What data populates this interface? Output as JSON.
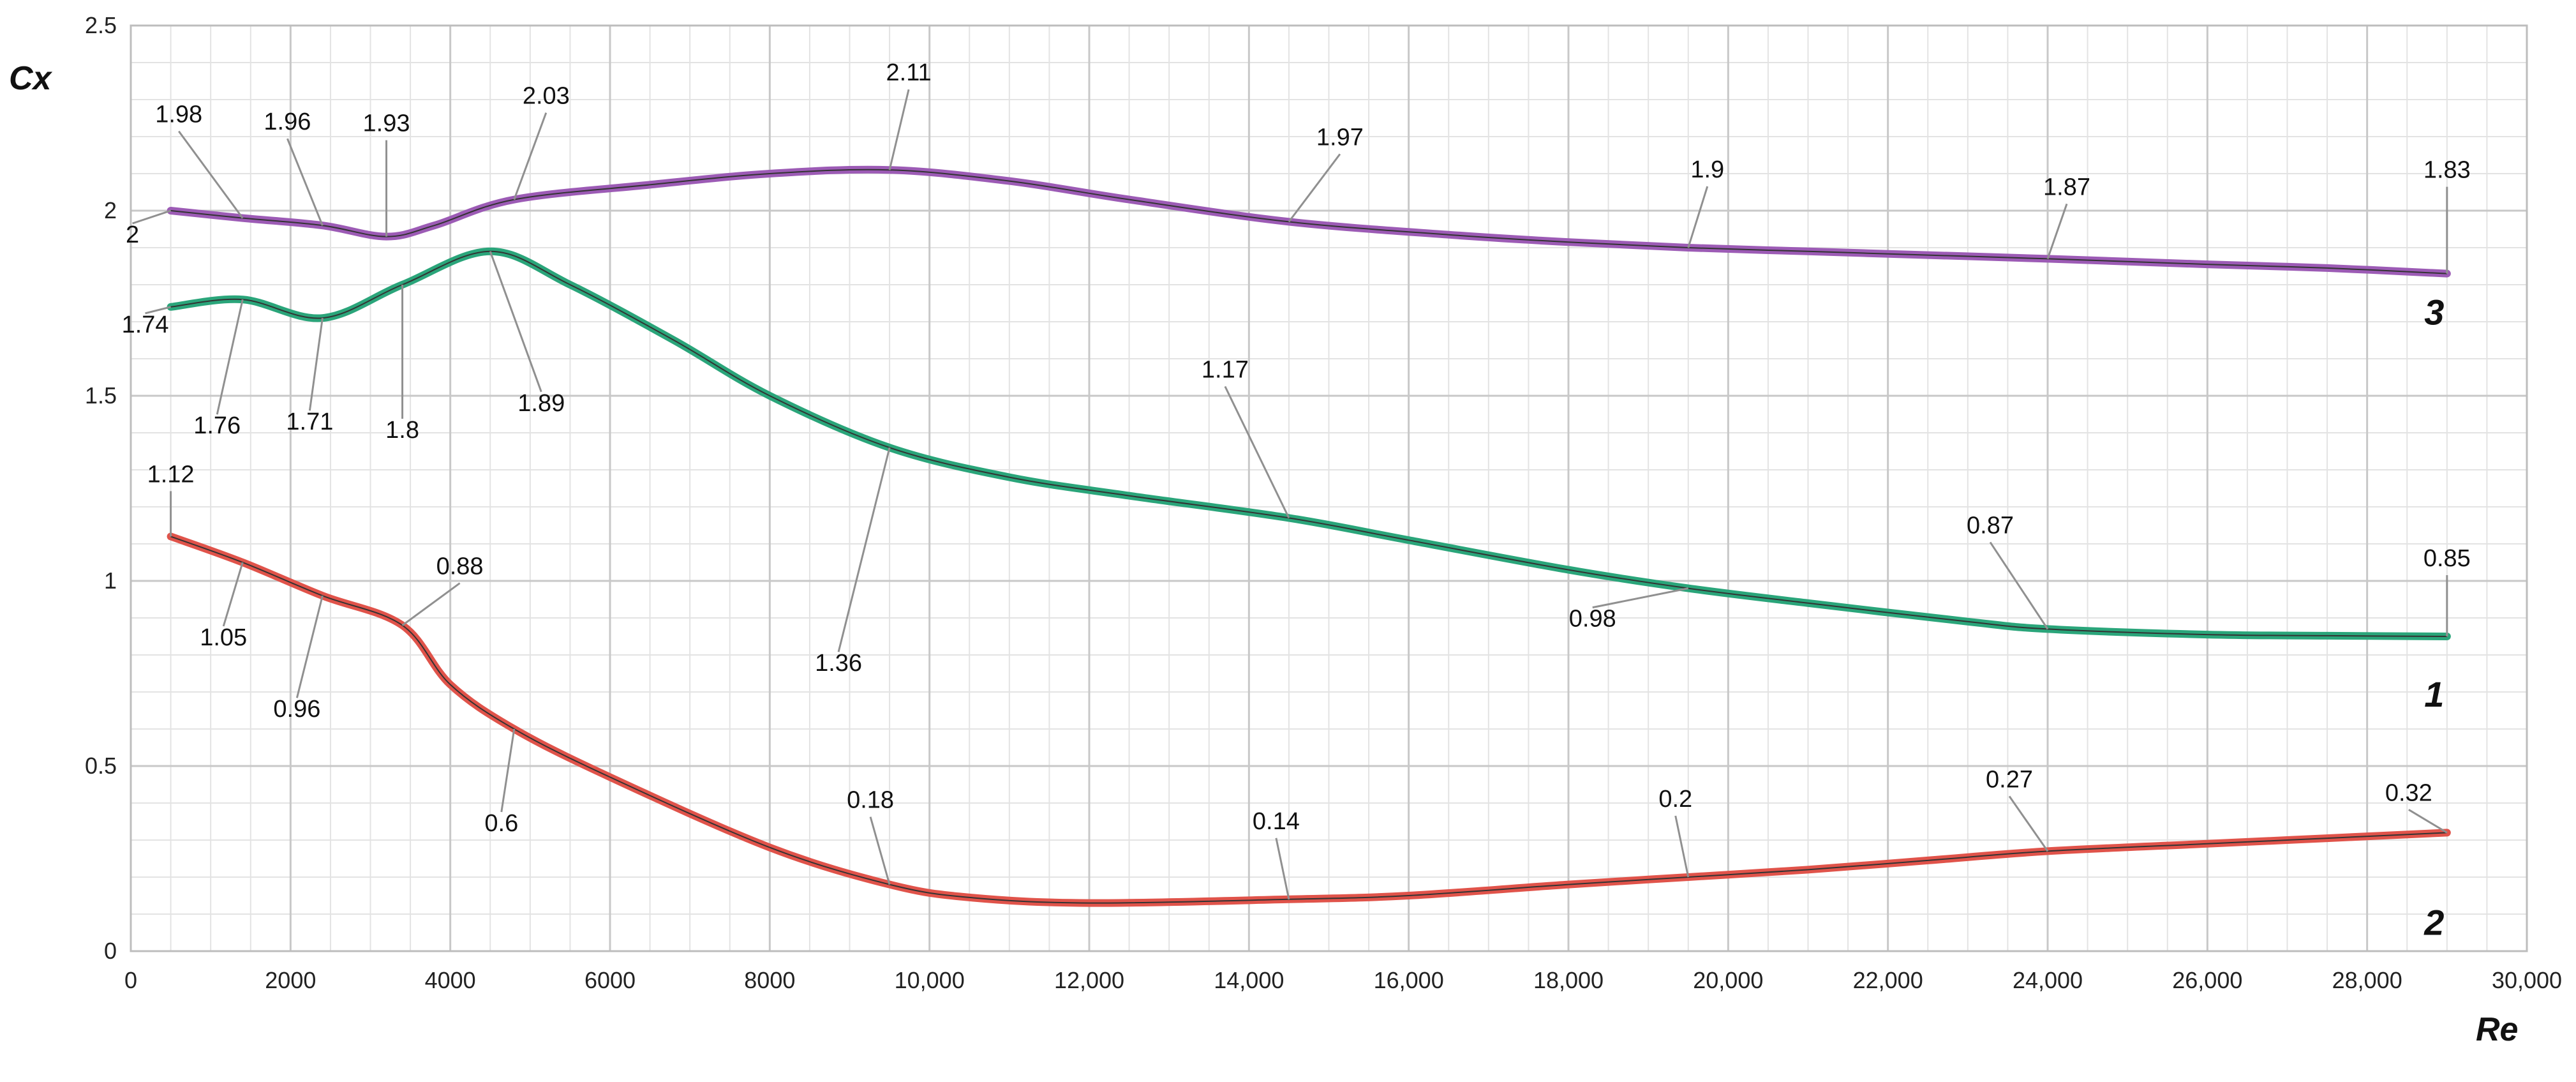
{
  "chart_data": {
    "type": "line",
    "title": "",
    "xlabel": "Re",
    "ylabel": "Cx",
    "xlim": [
      0,
      30000
    ],
    "ylim": [
      0,
      2.5
    ],
    "x_ticks": [
      "0",
      "2000",
      "4000",
      "6000",
      "8000",
      "10,000",
      "12,000",
      "14,000",
      "16,000",
      "18,000",
      "20,000",
      "22,000",
      "24,000",
      "26,000",
      "28,000",
      "30,000"
    ],
    "y_ticks": [
      "0",
      "0.5",
      "1",
      "1.5",
      "2",
      "2.5"
    ],
    "grid": true,
    "legend": "none",
    "colors": {
      "1": "#2aa57a",
      "2": "#e0534a",
      "3": "#9c5bb5",
      "grid": "#c8c8c8",
      "leader": "#909090"
    },
    "series": [
      {
        "name": "1",
        "x": [
          500,
          1400,
          2400,
          3400,
          4500,
          5500,
          6800,
          8000,
          9500,
          11000,
          12500,
          14500,
          16000,
          18000,
          19500,
          21000,
          23000,
          24000,
          26000,
          27500,
          29000
        ],
        "y": [
          1.74,
          1.76,
          1.71,
          1.8,
          1.89,
          1.8,
          1.65,
          1.5,
          1.36,
          1.28,
          1.23,
          1.17,
          1.11,
          1.03,
          0.98,
          0.94,
          0.89,
          0.87,
          0.855,
          0.852,
          0.85
        ],
        "labels": [
          {
            "x": 500,
            "y": 1.74,
            "text": "1.74"
          },
          {
            "x": 1400,
            "y": 1.76,
            "text": "1.76"
          },
          {
            "x": 2400,
            "y": 1.71,
            "text": "1.71"
          },
          {
            "x": 3400,
            "y": 1.8,
            "text": "1.8"
          },
          {
            "x": 4500,
            "y": 1.89,
            "text": "1.89"
          },
          {
            "x": 9500,
            "y": 1.36,
            "text": "1.36"
          },
          {
            "x": 14500,
            "y": 1.17,
            "text": "1.17"
          },
          {
            "x": 19500,
            "y": 0.98,
            "text": "0.98"
          },
          {
            "x": 24000,
            "y": 0.87,
            "text": "0.87"
          },
          {
            "x": 29000,
            "y": 0.85,
            "text": "0.85"
          }
        ]
      },
      {
        "name": "2",
        "x": [
          500,
          1400,
          2400,
          3400,
          4000,
          4800,
          6000,
          8000,
          9500,
          10500,
          12000,
          14500,
          16000,
          18000,
          19500,
          21000,
          22500,
          24000,
          26000,
          27500,
          29000
        ],
        "y": [
          1.12,
          1.05,
          0.96,
          0.88,
          0.72,
          0.6,
          0.47,
          0.28,
          0.18,
          0.145,
          0.13,
          0.14,
          0.15,
          0.18,
          0.2,
          0.22,
          0.245,
          0.27,
          0.29,
          0.305,
          0.32
        ],
        "labels": [
          {
            "x": 500,
            "y": 1.12,
            "text": "1.12"
          },
          {
            "x": 1400,
            "y": 1.05,
            "text": "1.05"
          },
          {
            "x": 2400,
            "y": 0.96,
            "text": "0.96"
          },
          {
            "x": 3400,
            "y": 0.88,
            "text": "0.88"
          },
          {
            "x": 4800,
            "y": 0.6,
            "text": "0.6"
          },
          {
            "x": 9500,
            "y": 0.18,
            "text": "0.18"
          },
          {
            "x": 14500,
            "y": 0.14,
            "text": "0.14"
          },
          {
            "x": 19500,
            "y": 0.2,
            "text": "0.2"
          },
          {
            "x": 24000,
            "y": 0.27,
            "text": "0.27"
          },
          {
            "x": 29000,
            "y": 0.32,
            "text": "0.32"
          }
        ]
      },
      {
        "name": "3",
        "x": [
          500,
          1400,
          2400,
          3200,
          3800,
          4800,
          6500,
          8000,
          9500,
          11000,
          12500,
          14500,
          16500,
          18000,
          19500,
          21000,
          22500,
          24000,
          26000,
          27500,
          29000
        ],
        "y": [
          2.0,
          1.98,
          1.96,
          1.93,
          1.96,
          2.03,
          2.07,
          2.1,
          2.11,
          2.08,
          2.03,
          1.97,
          1.935,
          1.915,
          1.9,
          1.89,
          1.88,
          1.87,
          1.855,
          1.845,
          1.83
        ],
        "labels": [
          {
            "x": 500,
            "y": 2.0,
            "text": "2"
          },
          {
            "x": 1400,
            "y": 1.98,
            "text": "1.98"
          },
          {
            "x": 2400,
            "y": 1.96,
            "text": "1.96"
          },
          {
            "x": 3200,
            "y": 1.93,
            "text": "1.93"
          },
          {
            "x": 4800,
            "y": 2.03,
            "text": "2.03"
          },
          {
            "x": 9500,
            "y": 2.11,
            "text": "2.11"
          },
          {
            "x": 14500,
            "y": 1.97,
            "text": "1.97"
          },
          {
            "x": 19500,
            "y": 1.9,
            "text": "1.9"
          },
          {
            "x": 24000,
            "y": 1.87,
            "text": "1.87"
          },
          {
            "x": 29000,
            "y": 1.83,
            "text": "1.83"
          }
        ]
      }
    ]
  }
}
